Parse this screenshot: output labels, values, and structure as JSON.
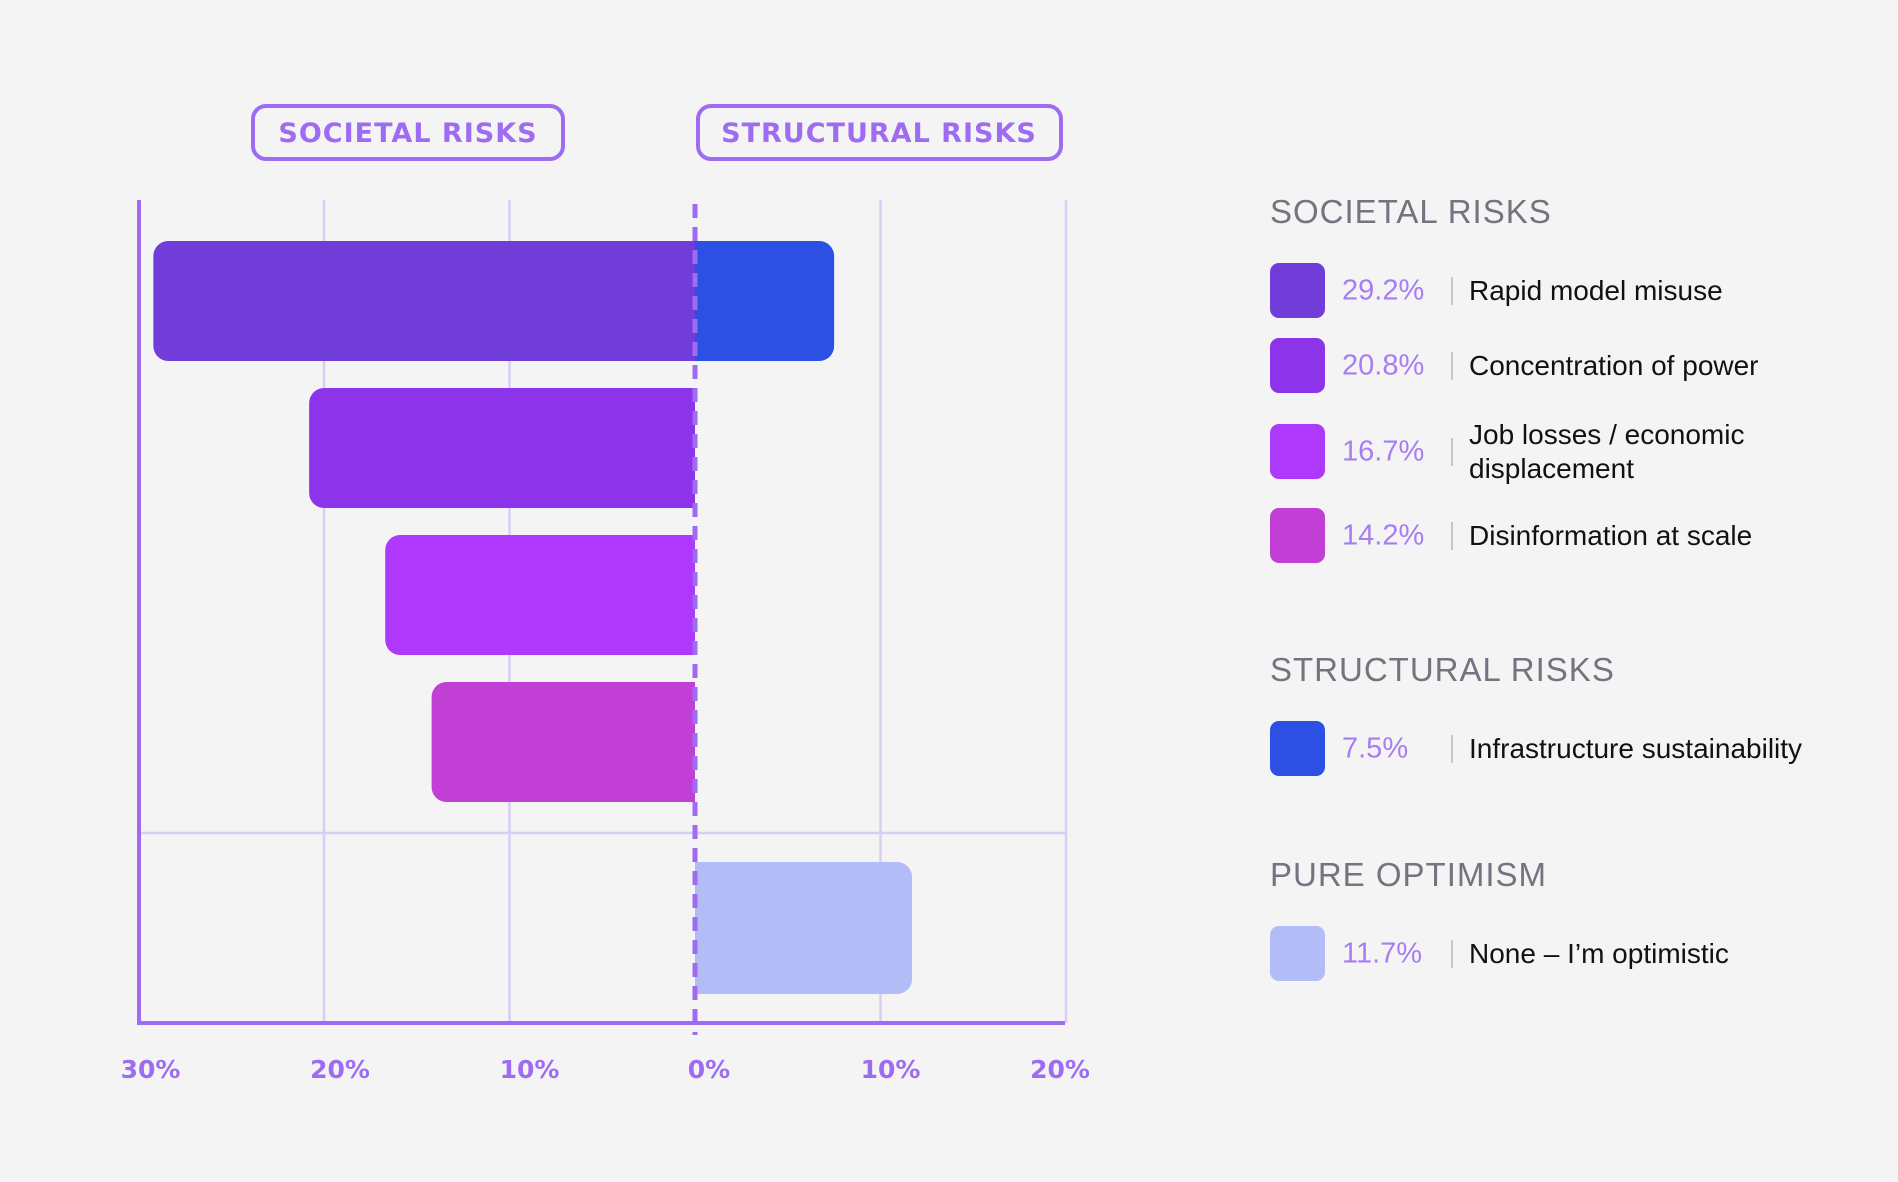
{
  "header_pills": {
    "societal": "SOCIETAL RISKS",
    "structural": "STRUCTURAL RISKS"
  },
  "chart_data": {
    "type": "bar",
    "orientation": "horizontal-diverging",
    "x_ticks": [
      "30%",
      "20%",
      "10%",
      "0%",
      "10%",
      "20%"
    ],
    "xlim": [
      -30,
      20
    ],
    "grid": true,
    "bars": [
      {
        "name": "Rapid model misuse",
        "group": "Societal risks",
        "value": 29.2,
        "direction": "left",
        "color": "#713dd9"
      },
      {
        "name": "Infrastructure sustainability",
        "group": "Structural risks",
        "value": 7.5,
        "direction": "right",
        "color": "#2b50e3"
      },
      {
        "name": "Concentration of power",
        "group": "Societal risks",
        "value": 20.8,
        "direction": "left",
        "color": "#8d34ea"
      },
      {
        "name": "Job losses / economic displacement",
        "group": "Societal risks",
        "value": 16.7,
        "direction": "left",
        "color": "#ae39fd"
      },
      {
        "name": "Disinformation at scale",
        "group": "Societal risks",
        "value": 14.2,
        "direction": "left",
        "color": "#c23fd5"
      },
      {
        "name": "None – I’m optimistic",
        "group": "Pure optimism",
        "value": 11.7,
        "direction": "right",
        "color": "#b2bcf6"
      }
    ]
  },
  "legend": {
    "sections": [
      {
        "title": "SOCIETAL RISKS",
        "items": [
          {
            "pct": "29.2%",
            "label": "Rapid model misuse",
            "color": "#713dd9"
          },
          {
            "pct": "20.8%",
            "label": "Concentration of power",
            "color": "#8d34ea"
          },
          {
            "pct": "16.7%",
            "label": "Job losses / economic displacement",
            "color": "#ae39fd"
          },
          {
            "pct": "14.2%",
            "label": "Disinformation at scale",
            "color": "#c23fd5"
          }
        ]
      },
      {
        "title": "STRUCTURAL RISKS",
        "items": [
          {
            "pct": "7.5%",
            "label": "Infrastructure sustainability",
            "color": "#2b50e3"
          }
        ]
      },
      {
        "title": "PURE OPTIMISM",
        "items": [
          {
            "pct": "11.7%",
            "label": "None – I’m optimistic",
            "color": "#b2bcf6"
          }
        ]
      }
    ]
  }
}
